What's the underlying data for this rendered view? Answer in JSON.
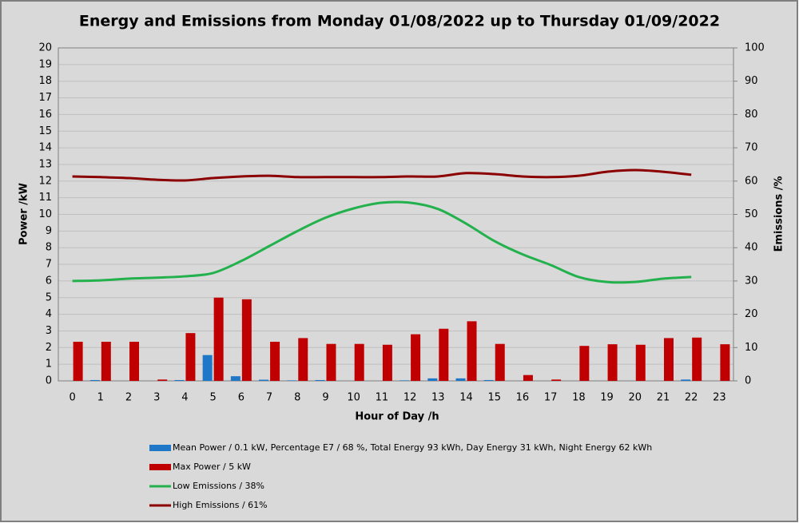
{
  "chart_data": {
    "type": "bar",
    "title": "Energy and Emissions from Monday 01/08/2022 up to Thursday 01/09/2022",
    "x_label": "Hour of Day /h",
    "y_label": "Power /kW",
    "y2_label": "Emissions /%",
    "categories": [
      "0",
      "1",
      "2",
      "3",
      "4",
      "5",
      "6",
      "7",
      "8",
      "9",
      "10",
      "11",
      "12",
      "13",
      "14",
      "15",
      "16",
      "17",
      "18",
      "19",
      "20",
      "21",
      "22",
      "23"
    ],
    "ylim": [
      0,
      20
    ],
    "yticks": [
      0,
      1,
      2,
      3,
      4,
      5,
      6,
      7,
      8,
      9,
      10,
      11,
      12,
      13,
      14,
      15,
      16,
      17,
      18,
      19,
      20
    ],
    "y2lim": [
      0,
      100
    ],
    "y2ticks": [
      0,
      10,
      20,
      30,
      40,
      50,
      60,
      70,
      80,
      90,
      100
    ],
    "grid": true,
    "series": [
      {
        "name": "Mean Power / 0.1 kW, Percentage E7 / 68 %, Total Energy 93 kWh, Day Energy 31 kWh, Night Energy 62 kWh",
        "color": "#1f77c8",
        "type": "bar",
        "values": [
          0,
          0.05,
          0,
          0,
          0.05,
          1.55,
          0.28,
          0.07,
          0.03,
          0.05,
          0,
          0,
          0.03,
          0.15,
          0.15,
          0.05,
          0,
          0,
          0,
          0,
          0,
          0,
          0.08,
          0
        ]
      },
      {
        "name": "Max Power / 5 kW",
        "color": "#c00000",
        "type": "bar",
        "values": [
          2.35,
          2.35,
          2.35,
          0.08,
          2.87,
          5.0,
          4.9,
          2.35,
          2.57,
          2.22,
          2.22,
          2.17,
          2.8,
          3.13,
          3.58,
          2.22,
          0.35,
          0.08,
          2.1,
          2.2,
          2.17,
          2.57,
          2.6,
          2.2
        ]
      },
      {
        "name": "Low Emissions / 38%",
        "color": "#22b14c",
        "type": "line",
        "axis": "y2",
        "values": [
          30,
          30.2,
          30.7,
          31,
          31.4,
          32.4,
          36,
          40.5,
          45,
          49,
          51.8,
          53.5,
          53.5,
          51.6,
          47.2,
          42,
          38,
          34.8,
          31.2,
          29.7,
          29.7,
          30.7,
          31.2,
          null
        ]
      },
      {
        "name": "High Emissions / 61%",
        "color": "#8b0000",
        "type": "line",
        "axis": "y2",
        "values": [
          61.4,
          61.2,
          60.9,
          60.4,
          60.2,
          60.9,
          61.4,
          61.6,
          61.2,
          61.2,
          61.2,
          61.2,
          61.4,
          61.4,
          62.4,
          62.1,
          61.4,
          61.2,
          61.6,
          62.8,
          63.3,
          62.8,
          61.9,
          null
        ]
      }
    ]
  }
}
